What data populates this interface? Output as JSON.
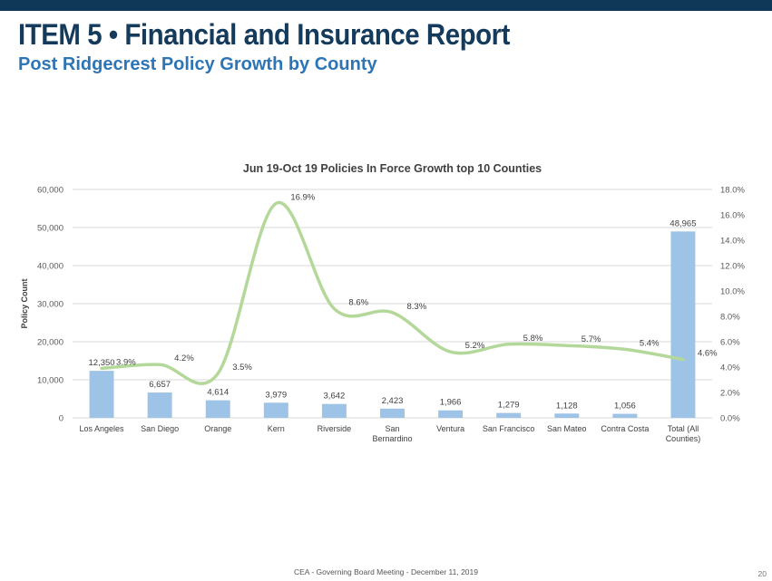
{
  "slide": {
    "title": "ITEM 5 • Financial and Insurance Report",
    "subtitle": "Post Ridgecrest Policy Growth by County",
    "footer": "CEA - Governing Board Meeting - December 11, 2019",
    "page_number": "20"
  },
  "colors": {
    "header_bar": "#0f3858",
    "title": "#143a5c",
    "subtitle": "#2e75b6",
    "bars": "#9dc3e6",
    "line": "#b4d89a"
  },
  "chart_data": {
    "type": "bar",
    "title": "Jun 19-Oct 19 Policies In Force Growth top 10 Counties",
    "ylabel": "Policy Count",
    "y2label": "",
    "categories": [
      [
        "Los Angeles"
      ],
      [
        "San Diego"
      ],
      [
        "Orange"
      ],
      [
        "Kern"
      ],
      [
        "Riverside"
      ],
      [
        "San",
        "Bernardino"
      ],
      [
        "Ventura"
      ],
      [
        "San Francisco"
      ],
      [
        "San Mateo"
      ],
      [
        "Contra Costa"
      ],
      [
        "Total (All",
        "Counties)"
      ]
    ],
    "series": [
      {
        "type": "bar",
        "axis": "left",
        "values": [
          12350,
          6657,
          4614,
          3979,
          3642,
          2423,
          1966,
          1279,
          1128,
          1056,
          48965
        ],
        "labels": [
          "12,350",
          "6,657",
          "4,614",
          "3,979",
          "3,642",
          "2,423",
          "1,966",
          "1,279",
          "1,128",
          "1,056",
          "48,965"
        ]
      },
      {
        "type": "line",
        "axis": "right",
        "smooth": true,
        "values": [
          3.9,
          4.2,
          3.5,
          16.9,
          8.6,
          8.3,
          5.2,
          5.8,
          5.7,
          5.4,
          4.6
        ],
        "labels": [
          "3.9%",
          "4.2%",
          "3.5%",
          "16.9%",
          "8.6%",
          "8.3%",
          "5.2%",
          "5.8%",
          "5.7%",
          "5.4%",
          "4.6%"
        ]
      }
    ],
    "y_ticks": [
      "0",
      "10,000",
      "20,000",
      "30,000",
      "40,000",
      "50,000",
      "60,000"
    ],
    "y_tick_values": [
      0,
      10000,
      20000,
      30000,
      40000,
      50000,
      60000
    ],
    "ylim": [
      0,
      60000
    ],
    "y2_ticks": [
      "0.0%",
      "2.0%",
      "4.0%",
      "6.0%",
      "8.0%",
      "10.0%",
      "12.0%",
      "14.0%",
      "16.0%",
      "18.0%"
    ],
    "y2_tick_values": [
      0,
      2,
      4,
      6,
      8,
      10,
      12,
      14,
      16,
      18
    ],
    "y2lim": [
      0,
      18
    ],
    "grid": true,
    "legend": "none"
  }
}
